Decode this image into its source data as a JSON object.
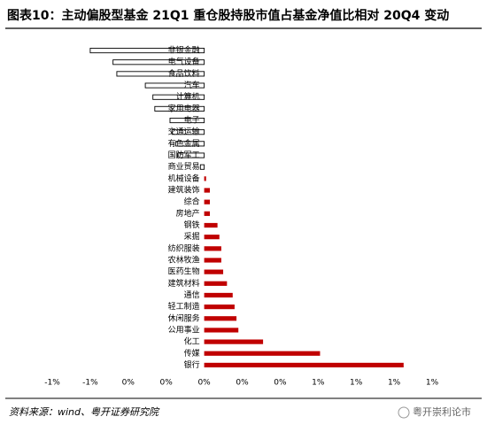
{
  "chart_data": {
    "type": "barh",
    "title": "图表10：主动偏股型基金 21Q1 重仓股持股市值占基金净值比相对 20Q4 变动",
    "categories": [
      "非银金融",
      "电气设备",
      "食品饮料",
      "汽车",
      "计算机",
      "家用电器",
      "电子",
      "交通运输",
      "有色金属",
      "国防军工",
      "商业贸易",
      "机械设备",
      "建筑装饰",
      "综合",
      "房地产",
      "钢铁",
      "采掘",
      "纺织服装",
      "农林牧渔",
      "医药生物",
      "建筑材料",
      "通信",
      "轻工制造",
      "休闲服务",
      "公用事业",
      "化工",
      "传媒",
      "银行"
    ],
    "values": [
      -0.6,
      -0.48,
      -0.46,
      -0.31,
      -0.27,
      -0.26,
      -0.18,
      -0.17,
      -0.15,
      -0.14,
      -0.02,
      0.01,
      0.03,
      0.03,
      0.03,
      0.07,
      0.08,
      0.09,
      0.09,
      0.1,
      0.12,
      0.15,
      0.16,
      0.17,
      0.18,
      0.31,
      0.61,
      1.05
    ],
    "color": "#c00000",
    "negative_color": "#ffffff",
    "xlim": [
      -0.8,
      1.2
    ],
    "xticks": [
      {
        "value": -0.8,
        "label": "-1%"
      },
      {
        "value": -0.6,
        "label": "-1%"
      },
      {
        "value": -0.4,
        "label": "0%"
      },
      {
        "value": -0.2,
        "label": "0%"
      },
      {
        "value": 0,
        "label": "0%"
      },
      {
        "value": 0.2,
        "label": "0%"
      },
      {
        "value": 0.4,
        "label": "0%"
      },
      {
        "value": 0.6,
        "label": "1%"
      },
      {
        "value": 0.8,
        "label": "1%"
      },
      {
        "value": 1.0,
        "label": "1%"
      },
      {
        "value": 1.2,
        "label": "1%"
      }
    ],
    "grid": false,
    "source": "资料来源：wind、粤开证券研究院",
    "watermark": "粤开崇利论市"
  }
}
